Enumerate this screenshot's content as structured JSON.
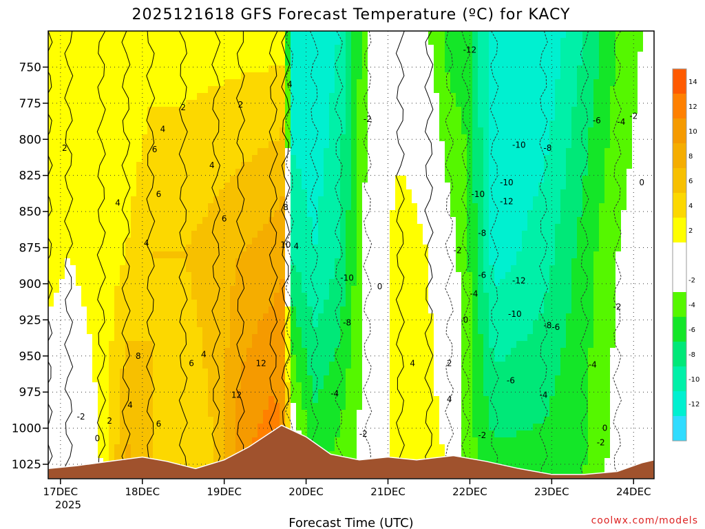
{
  "chart_data": {
    "type": "heatmap",
    "title": "2025121618 GFS Forecast Temperature (ºC) for KACY",
    "xlabel": "Forecast Time (UTC)",
    "ylabel": "",
    "credit": "coolwx.com/models",
    "x_ticks": [
      "17DEC",
      "18DEC",
      "19DEC",
      "20DEC",
      "21DEC",
      "22DEC",
      "23DEC",
      "24DEC"
    ],
    "x_year": "2025",
    "y_ticks": [
      750,
      775,
      800,
      825,
      850,
      875,
      900,
      925,
      950,
      975,
      1000,
      1025
    ],
    "y_range_hpa": [
      725,
      1035
    ],
    "x_range_days": [
      -0.15,
      7.25
    ],
    "colorbar": {
      "ticks": [
        "14",
        "12",
        "10",
        "8",
        "6",
        "4",
        "2",
        "-2",
        "-4",
        "-6",
        "-8",
        "-10",
        "-12"
      ],
      "bands": [
        {
          "range": [
            14,
            16
          ],
          "color": "#ff5a00"
        },
        {
          "range": [
            12,
            14
          ],
          "color": "#ff8000"
        },
        {
          "range": [
            10,
            12
          ],
          "color": "#f59a00"
        },
        {
          "range": [
            8,
            10
          ],
          "color": "#f5ad00"
        },
        {
          "range": [
            6,
            8
          ],
          "color": "#f7c000"
        },
        {
          "range": [
            4,
            6
          ],
          "color": "#fcd800"
        },
        {
          "range": [
            2,
            4
          ],
          "color": "#ffff00"
        },
        {
          "range": [
            0,
            2
          ],
          "color": "#ffffff"
        },
        {
          "range": [
            -2,
            0
          ],
          "color": "#ffffff"
        },
        {
          "range": [
            -4,
            -2
          ],
          "color": "#55f700"
        },
        {
          "range": [
            -6,
            -4
          ],
          "color": "#14e628"
        },
        {
          "range": [
            -8,
            -6
          ],
          "color": "#00e878"
        },
        {
          "range": [
            -10,
            -8
          ],
          "color": "#00f0a8"
        },
        {
          "range": [
            -12,
            -10
          ],
          "color": "#00f0d0"
        },
        {
          "range": [
            -14,
            -12
          ],
          "color": "#30dcff"
        }
      ]
    },
    "columns": [
      {
        "day": -0.15,
        "t_top": 2,
        "t_mid": 3,
        "t_bot": -1
      },
      {
        "day": 0.1,
        "t_top": 2,
        "t_mid": 2,
        "t_bot": -1
      },
      {
        "day": 0.5,
        "t_top": 2,
        "t_mid": 3,
        "t_bot": 2
      },
      {
        "day": 0.8,
        "t_top": 2,
        "t_mid": 4,
        "t_bot": 9
      },
      {
        "day": 1.1,
        "t_top": 3,
        "t_mid": 6,
        "t_bot": 6
      },
      {
        "day": 1.5,
        "t_top": 3,
        "t_mid": 6,
        "t_bot": 4
      },
      {
        "day": 1.9,
        "t_top": 3,
        "t_mid": 7,
        "t_bot": 6
      },
      {
        "day": 2.2,
        "t_top": 3,
        "t_mid": 8,
        "t_bot": 12
      },
      {
        "day": 2.6,
        "t_top": 3,
        "t_mid": 9,
        "t_bot": 14
      },
      {
        "day": 2.75,
        "t_top": 3,
        "t_mid": 10,
        "t_bot": 12
      },
      {
        "day": 2.8,
        "t_top": -12,
        "t_mid": -8,
        "t_bot": 2
      },
      {
        "day": 3.1,
        "t_top": -12,
        "t_mid": -10,
        "t_bot": -4
      },
      {
        "day": 3.4,
        "t_top": -10,
        "t_mid": -8,
        "t_bot": -3
      },
      {
        "day": 3.75,
        "t_top": -2,
        "t_mid": -1,
        "t_bot": -1
      },
      {
        "day": 4.15,
        "t_top": -1,
        "t_mid": 4,
        "t_bot": 4
      },
      {
        "day": 4.5,
        "t_top": -2,
        "t_mid": 2,
        "t_bot": 3
      },
      {
        "day": 4.75,
        "t_top": -5,
        "t_mid": -1,
        "t_bot": 2
      },
      {
        "day": 4.95,
        "t_top": -5,
        "t_mid": -3,
        "t_bot": -3
      },
      {
        "day": 5.3,
        "t_top": -12,
        "t_mid": -11,
        "t_bot": -5
      },
      {
        "day": 5.9,
        "t_top": -12,
        "t_mid": -9,
        "t_bot": -5
      },
      {
        "day": 6.4,
        "t_top": -8,
        "t_mid": -5,
        "t_bot": -4
      },
      {
        "day": 6.8,
        "t_top": -4,
        "t_mid": -2,
        "t_bot": -1
      },
      {
        "day": 7.25,
        "t_top": -1,
        "t_mid": 0,
        "t_bot": 1
      }
    ],
    "terrain_surface_hpa": [
      {
        "day": -0.15,
        "p": 1028
      },
      {
        "day": 0.2,
        "p": 1026
      },
      {
        "day": 0.6,
        "p": 1023
      },
      {
        "day": 1.0,
        "p": 1020
      },
      {
        "day": 1.3,
        "p": 1023
      },
      {
        "day": 1.65,
        "p": 1028
      },
      {
        "day": 2.0,
        "p": 1022
      },
      {
        "day": 2.3,
        "p": 1013
      },
      {
        "day": 2.7,
        "p": 998
      },
      {
        "day": 3.0,
        "p": 1006
      },
      {
        "day": 3.3,
        "p": 1018
      },
      {
        "day": 3.65,
        "p": 1022
      },
      {
        "day": 4.0,
        "p": 1020
      },
      {
        "day": 4.35,
        "p": 1022
      },
      {
        "day": 4.8,
        "p": 1019
      },
      {
        "day": 5.2,
        "p": 1023
      },
      {
        "day": 5.6,
        "p": 1028
      },
      {
        "day": 6.0,
        "p": 1032
      },
      {
        "day": 6.4,
        "p": 1032
      },
      {
        "day": 6.8,
        "p": 1030
      },
      {
        "day": 7.1,
        "p": 1024
      },
      {
        "day": 7.25,
        "p": 1022
      }
    ],
    "contour_labels": [
      {
        "text": "2",
        "day": 0.05,
        "p": 806
      },
      {
        "text": "-2",
        "day": 0.25,
        "p": 992
      },
      {
        "text": "0",
        "day": 0.45,
        "p": 1007
      },
      {
        "text": "2",
        "day": 0.6,
        "p": 995
      },
      {
        "text": "4",
        "day": 0.7,
        "p": 844
      },
      {
        "text": "4",
        "day": 0.85,
        "p": 984
      },
      {
        "text": "4",
        "day": 1.05,
        "p": 872
      },
      {
        "text": "6",
        "day": 1.15,
        "p": 807
      },
      {
        "text": "4",
        "day": 1.25,
        "p": 793
      },
      {
        "text": "6",
        "day": 1.2,
        "p": 838
      },
      {
        "text": "8",
        "day": 0.95,
        "p": 950
      },
      {
        "text": "6",
        "day": 1.2,
        "p": 997
      },
      {
        "text": "2",
        "day": 1.5,
        "p": 778
      },
      {
        "text": "4",
        "day": 1.85,
        "p": 818
      },
      {
        "text": "6",
        "day": 2.0,
        "p": 855
      },
      {
        "text": "6",
        "day": 1.6,
        "p": 955
      },
      {
        "text": "4",
        "day": 1.75,
        "p": 949
      },
      {
        "text": "2",
        "day": 2.2,
        "p": 776
      },
      {
        "text": "8",
        "day": 2.75,
        "p": 847
      },
      {
        "text": "10",
        "day": 2.75,
        "p": 873
      },
      {
        "text": "4",
        "day": 2.88,
        "p": 874
      },
      {
        "text": "4",
        "day": 2.8,
        "p": 762
      },
      {
        "text": "12",
        "day": 2.45,
        "p": 955
      },
      {
        "text": "12",
        "day": 2.15,
        "p": 977
      },
      {
        "text": "-2",
        "day": 3.75,
        "p": 786
      },
      {
        "text": "-10",
        "day": 3.5,
        "p": 896
      },
      {
        "text": "-8",
        "day": 3.5,
        "p": 927
      },
      {
        "text": "-4",
        "day": 3.35,
        "p": 976
      },
      {
        "text": "-2",
        "day": 3.7,
        "p": 1004
      },
      {
        "text": "0",
        "day": 3.9,
        "p": 902
      },
      {
        "text": "4",
        "day": 4.3,
        "p": 955
      },
      {
        "text": "4",
        "day": 4.75,
        "p": 980
      },
      {
        "text": "2",
        "day": 4.75,
        "p": 955
      },
      {
        "text": "-2",
        "day": 4.85,
        "p": 877
      },
      {
        "text": "0",
        "day": 4.95,
        "p": 925
      },
      {
        "text": "-4",
        "day": 5.05,
        "p": 907
      },
      {
        "text": "-12",
        "day": 5.0,
        "p": 738
      },
      {
        "text": "-10",
        "day": 5.1,
        "p": 838
      },
      {
        "text": "-8",
        "day": 5.15,
        "p": 865
      },
      {
        "text": "-6",
        "day": 5.15,
        "p": 894
      },
      {
        "text": "-2",
        "day": 5.15,
        "p": 1005
      },
      {
        "text": "-10",
        "day": 5.45,
        "p": 830
      },
      {
        "text": "-12",
        "day": 5.45,
        "p": 843
      },
      {
        "text": "-10",
        "day": 5.6,
        "p": 804
      },
      {
        "text": "-8",
        "day": 5.95,
        "p": 806
      },
      {
        "text": "-12",
        "day": 5.6,
        "p": 898
      },
      {
        "text": "-10",
        "day": 5.55,
        "p": 921
      },
      {
        "text": "-8",
        "day": 5.95,
        "p": 929
      },
      {
        "text": "-6",
        "day": 6.05,
        "p": 930
      },
      {
        "text": "-6",
        "day": 5.5,
        "p": 967
      },
      {
        "text": "-4",
        "day": 5.9,
        "p": 977
      },
      {
        "text": "-6",
        "day": 6.55,
        "p": 787
      },
      {
        "text": "-4",
        "day": 6.85,
        "p": 788
      },
      {
        "text": "-2",
        "day": 7.0,
        "p": 784
      },
      {
        "text": "0",
        "day": 7.1,
        "p": 830
      },
      {
        "text": "-2",
        "day": 6.8,
        "p": 916
      },
      {
        "text": "-4",
        "day": 6.5,
        "p": 956
      },
      {
        "text": "-2",
        "day": 6.6,
        "p": 1010
      },
      {
        "text": "0",
        "day": 6.65,
        "p": 1000
      }
    ]
  }
}
